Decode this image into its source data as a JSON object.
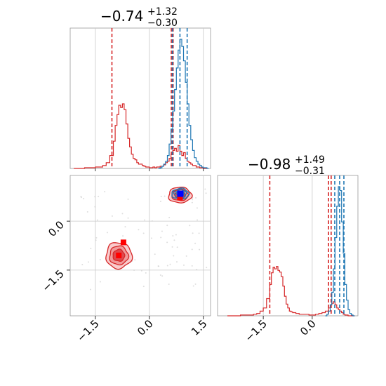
{
  "chart_data": [
    {
      "panel": "marginal-x",
      "type": "step-histogram",
      "title": {
        "median": "−0.74",
        "plus": "+1.32",
        "minus": "−0.30"
      },
      "xlim": [
        -2.2,
        1.7
      ],
      "grid": true,
      "series": [
        {
          "color": "#d62728",
          "quantiles": [
            -1.04,
            0.61,
            0.66
          ],
          "bins_x": [
            -2.1,
            -1.95,
            -1.8,
            -1.65,
            -1.5,
            -1.4,
            -1.3,
            -1.2,
            -1.1,
            -1.0,
            -0.95,
            -0.9,
            -0.85,
            -0.8,
            -0.75,
            -0.7,
            -0.65,
            -0.6,
            -0.55,
            -0.5,
            -0.45,
            -0.4,
            -0.35,
            -0.3,
            -0.25,
            -0.2,
            -0.15,
            -0.1,
            -0.05,
            0.0,
            0.05,
            0.1,
            0.15,
            0.2,
            0.25,
            0.3,
            0.35,
            0.4,
            0.45,
            0.5,
            0.55,
            0.6,
            0.65,
            0.7,
            0.75,
            0.8,
            0.85,
            0.9,
            0.95,
            1.0,
            1.05,
            1.1,
            1.15,
            1.2,
            1.3,
            1.4,
            1.5
          ],
          "counts": [
            0,
            0,
            1,
            1,
            2,
            2,
            4,
            8,
            18,
            38,
            60,
            75,
            88,
            85,
            90,
            82,
            62,
            42,
            30,
            20,
            14,
            12,
            8,
            6,
            6,
            4,
            3,
            2,
            2,
            1,
            1,
            2,
            1,
            2,
            2,
            3,
            3,
            5,
            8,
            10,
            14,
            20,
            25,
            28,
            24,
            32,
            24,
            18,
            22,
            14,
            10,
            8,
            6,
            4,
            2,
            1,
            0
          ]
        },
        {
          "color": "#1f77b4",
          "quantiles": [
            0.64,
            0.85,
            1.05
          ],
          "bins_x": [
            0.25,
            0.3,
            0.35,
            0.4,
            0.45,
            0.5,
            0.55,
            0.6,
            0.65,
            0.7,
            0.75,
            0.8,
            0.85,
            0.9,
            0.95,
            1.0,
            1.05,
            1.1,
            1.15,
            1.2,
            1.25,
            1.3,
            1.35,
            1.4,
            1.45,
            1.5,
            1.55,
            1.6
          ],
          "counts": [
            0,
            1,
            3,
            6,
            10,
            18,
            34,
            55,
            80,
            110,
            140,
            165,
            180,
            170,
            150,
            120,
            90,
            60,
            40,
            25,
            15,
            10,
            6,
            4,
            2,
            1,
            1,
            0
          ]
        }
      ]
    },
    {
      "panel": "marginal-y",
      "type": "step-histogram",
      "title": {
        "median": "−0.98",
        "plus": "+1.49",
        "minus": "−0.31"
      },
      "xlim": [
        -2.9,
        1.4
      ],
      "xticks": [
        "−1.5",
        "0.0"
      ],
      "grid": true,
      "series": [
        {
          "color": "#d62728",
          "quantiles": [
            -1.3,
            0.5,
            0.58
          ],
          "bins_x": [
            -2.6,
            -2.4,
            -2.2,
            -2.0,
            -1.8,
            -1.7,
            -1.6,
            -1.5,
            -1.4,
            -1.3,
            -1.25,
            -1.2,
            -1.15,
            -1.1,
            -1.05,
            -1.0,
            -0.95,
            -0.9,
            -0.85,
            -0.8,
            -0.75,
            -0.7,
            -0.65,
            -0.6,
            -0.5,
            -0.4,
            -0.3,
            -0.2,
            -0.1,
            0.0,
            0.1,
            0.2,
            0.3,
            0.4,
            0.5,
            0.55,
            0.6,
            0.65,
            0.7,
            0.75,
            0.8,
            0.85,
            0.9,
            0.95,
            1.0,
            1.1,
            1.2
          ],
          "counts": [
            0,
            0,
            1,
            1,
            2,
            3,
            6,
            10,
            22,
            40,
            55,
            62,
            60,
            63,
            58,
            56,
            50,
            38,
            25,
            15,
            10,
            6,
            5,
            4,
            3,
            2,
            2,
            2,
            1,
            1,
            2,
            3,
            4,
            6,
            10,
            14,
            16,
            18,
            14,
            10,
            8,
            6,
            4,
            2,
            1,
            0,
            0
          ]
        },
        {
          "color": "#1f77b4",
          "quantiles": [
            0.69,
            0.84,
            0.97
          ],
          "bins_x": [
            0.4,
            0.45,
            0.5,
            0.55,
            0.6,
            0.65,
            0.7,
            0.75,
            0.8,
            0.85,
            0.9,
            0.95,
            1.0,
            1.05,
            1.1,
            1.15,
            1.2,
            1.25
          ],
          "counts": [
            0,
            2,
            6,
            14,
            30,
            60,
            100,
            140,
            165,
            160,
            120,
            80,
            40,
            20,
            8,
            3,
            1,
            0
          ]
        }
      ]
    },
    {
      "panel": "joint",
      "type": "contour",
      "xlim": [
        -2.2,
        1.7
      ],
      "ylim": [
        -2.9,
        1.4
      ],
      "xticks": [
        "−1.5",
        "0.0",
        "1.5"
      ],
      "yticks": [
        "0.0",
        "−1.5"
      ],
      "grid": true,
      "series": [
        {
          "color": "#d62728",
          "fill": "#f4a6a7",
          "modes": [
            {
              "center": [
                -0.85,
                -1.05
              ],
              "spread": [
                0.36,
                0.4
              ],
              "points": [
                [
                  -0.72,
                  -0.65
                ],
                [
                  -0.85,
                  -1.05
                ]
              ]
            },
            {
              "center": [
                0.85,
                0.8
              ],
              "spread": [
                0.32,
                0.24
              ],
              "points": [
                [
                  0.85,
                  0.72
                ]
              ]
            }
          ]
        },
        {
          "color": "#1f77b4",
          "modes": [
            {
              "center": [
                0.86,
                0.84
              ],
              "spread": [
                0.24,
                0.16
              ],
              "points": [
                [
                  0.86,
                  0.84
                ]
              ]
            }
          ]
        }
      ]
    }
  ]
}
